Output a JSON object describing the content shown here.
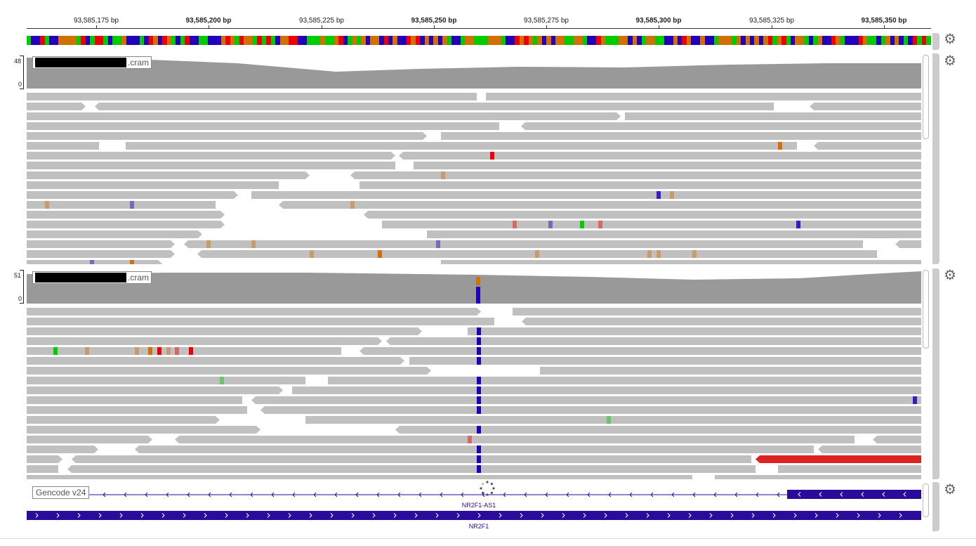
{
  "ruler": {
    "ticks": [
      {
        "label": "93,585,175 bp",
        "bold": false,
        "pos": 137
      },
      {
        "label": "93,585,200 bp",
        "bold": true,
        "pos": 297
      },
      {
        "label": "93,585,225 bp",
        "bold": false,
        "pos": 458
      },
      {
        "label": "93,585,250 bp",
        "bold": true,
        "pos": 618
      },
      {
        "label": "93,585,275 bp",
        "bold": false,
        "pos": 778
      },
      {
        "label": "93,585,300 bp",
        "bold": true,
        "pos": 938
      },
      {
        "label": "93,585,325 bp",
        "bold": false,
        "pos": 1099
      },
      {
        "label": "93,585,350 bp",
        "bold": true,
        "pos": 1259
      }
    ]
  },
  "tracks": [
    {
      "name_suffix": ".cram",
      "scale_max": "48",
      "scale_min": "0"
    },
    {
      "name_suffix": ".cram",
      "scale_max": "51",
      "scale_min": "0"
    }
  ],
  "annotation": {
    "label": "Gencode v24",
    "genes": [
      {
        "name": "NR2F1-AS1"
      },
      {
        "name": "NR2F1"
      }
    ]
  },
  "colors": {
    "read": "#c0c0c0",
    "coverage": "#999999",
    "A": "#00cc00",
    "C": "#2200bb",
    "G": "#d17105",
    "T": "#ee0000",
    "gene": "#2a0b9a",
    "reverse_strand_read": "#dd2222"
  },
  "icons": [
    "gear-icon"
  ]
}
